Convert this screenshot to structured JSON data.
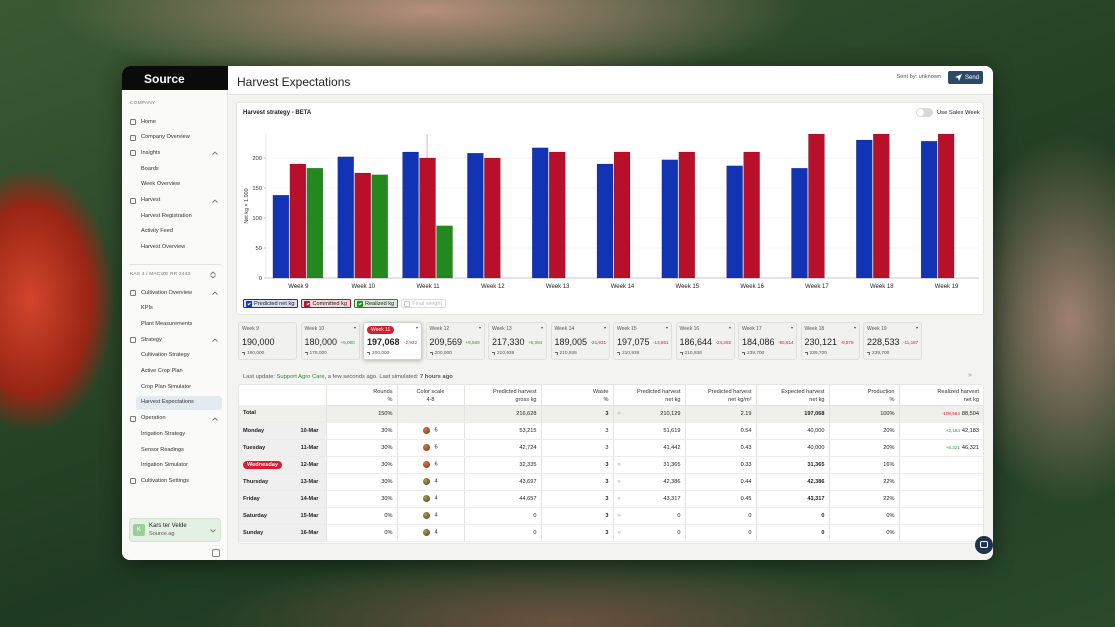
{
  "sidebar": {
    "logo": "Source",
    "groups": [
      {
        "header": "COMPANY",
        "items": [
          {
            "label": "Home"
          },
          {
            "label": "Company Overview"
          },
          {
            "label": "Insights",
            "children": [
              "Boards",
              "Week Overview"
            ]
          },
          {
            "label": "Harvest",
            "children": [
              "Harvest Registration",
              "Activity Feed",
              "Harvest Overview"
            ]
          }
        ]
      },
      {
        "header": "KAS 4 / MACIZE RR 2443",
        "items": [
          {
            "label": "Cultivation Overview",
            "children": [
              "KPIs",
              "Plant Measurements"
            ]
          },
          {
            "label": "Strategy",
            "children": [
              "Cultivation Strategy",
              "Active Crop Plan",
              "Crop Plan Simulator",
              "Harvest Expectations"
            ]
          },
          {
            "label": "Operation",
            "children": [
              "Irrigation Strategy",
              "Sensor Readings",
              "Irrigation Simulator"
            ]
          },
          {
            "label": "Cultivation Settings"
          }
        ]
      }
    ],
    "user": {
      "initial": "K",
      "name": "Kars ter Velde",
      "org": "Source.ag"
    }
  },
  "header": {
    "title": "Harvest Expectations",
    "sent_by": "Sent by: unknown",
    "send": "Send"
  },
  "panel": {
    "title": "Harvest strategy - BETA",
    "toggle": "Use Sales Week"
  },
  "chart_data": {
    "type": "bar",
    "y_label": "Net kg × 1.000",
    "categories": [
      "Week 9",
      "Week 10",
      "Week 11",
      "Week 12",
      "Week 13",
      "Week 14",
      "Week 15",
      "Week 16",
      "Week 17",
      "Week 18",
      "Week 19"
    ],
    "series": [
      {
        "name": "Predicted net kg",
        "color": "#1234b4",
        "values": [
          138,
          202,
          210,
          208,
          217,
          190,
          197,
          187,
          183,
          230,
          228
        ]
      },
      {
        "name": "Committed kg",
        "color": "#b8102a",
        "values": [
          190,
          175,
          200,
          200,
          210,
          210,
          210,
          210,
          240,
          240,
          240
        ]
      },
      {
        "name": "Realized kg",
        "color": "#23891f",
        "values": [
          183,
          172,
          87,
          null,
          null,
          null,
          null,
          null,
          null,
          null,
          null
        ]
      }
    ],
    "inactive_legend": "Final weight",
    "ylim": [
      0,
      240
    ],
    "yticks": [
      0,
      50,
      100,
      150,
      200
    ],
    "grid": true
  },
  "week_cards": [
    {
      "week": "Week 9",
      "value": "190,000",
      "committed": "190,000"
    },
    {
      "week": "Week 10",
      "value": "180,000",
      "delta": "+5,000",
      "committed": "175,000"
    },
    {
      "week": "Week 11",
      "value": "197,068",
      "delta": "-2,932",
      "committed": "200,000"
    },
    {
      "week": "Week 12",
      "value": "209,569",
      "delta": "+9,569",
      "committed": "200,000"
    },
    {
      "week": "Week 13",
      "value": "217,330",
      "delta": "+6,394",
      "committed": "210,936"
    },
    {
      "week": "Week 14",
      "value": "189,005",
      "delta": "-21,931",
      "committed": "210,936"
    },
    {
      "week": "Week 15",
      "value": "197,075",
      "delta": "-13,861",
      "committed": "210,936"
    },
    {
      "week": "Week 16",
      "value": "186,644",
      "delta": "-24,292",
      "committed": "210,936"
    },
    {
      "week": "Week 17",
      "value": "184,086",
      "delta": "-55,614",
      "committed": "239,700"
    },
    {
      "week": "Week 18",
      "value": "230,121",
      "delta": "-9,579",
      "committed": "239,700"
    },
    {
      "week": "Week 19",
      "value": "228,533",
      "delta": "-11,167",
      "committed": "239,700"
    }
  ],
  "update": {
    "prefix": "Last update:",
    "by": "Support Agro Care",
    "middle": ", a few seconds ago. Last simulated:",
    "simulated": "7 hours ago"
  },
  "table": {
    "columns": [
      {
        "title": "Rounds",
        "unit": "%"
      },
      {
        "title": "Color scale",
        "unit": "4-8"
      },
      {
        "title": "Predicted harvest",
        "unit": "gross kg"
      },
      {
        "title": "Waste",
        "unit": "%"
      },
      {
        "title": "Predicted harvest",
        "unit": "net kg"
      },
      {
        "title": "Predicted harvest",
        "unit": "net kg/m²"
      },
      {
        "title": "Expected harvest",
        "unit": "net kg"
      },
      {
        "title": "Production",
        "unit": "%"
      },
      {
        "title": "Realized harvest",
        "unit": "net kg"
      }
    ],
    "total": {
      "label": "Total",
      "cells": [
        "150%",
        null,
        "216,628",
        "3",
        "210,129",
        "2.19",
        "197,068",
        "100%",
        {
          "delta": "-108,564",
          "value": "88,504"
        }
      ]
    },
    "rows": [
      {
        "day": "Monday",
        "date": "10-Mar",
        "cells": [
          "30%",
          "6",
          "53,215",
          "3",
          "51,619",
          "0.54",
          "40,000",
          "20%",
          {
            "delta": "+2,183",
            "value": "42,183"
          }
        ]
      },
      {
        "day": "Tuesday",
        "date": "11-Mar",
        "cells": [
          "30%",
          "6",
          "42,724",
          "3",
          "41,442",
          "0.43",
          "40,000",
          "20%",
          {
            "delta": "+6,321",
            "value": "46,321"
          }
        ]
      },
      {
        "day": "Wednesday",
        "date": "12-Mar",
        "cells": [
          "30%",
          "6",
          "32,335",
          "3",
          "31,365",
          "0.33",
          "31,365",
          "16%"
        ]
      },
      {
        "day": "Thursday",
        "date": "13-Mar",
        "cells": [
          "30%",
          "4",
          "43,697",
          "3",
          "42,386",
          "0.44",
          "42,386",
          "22%"
        ]
      },
      {
        "day": "Friday",
        "date": "14-Mar",
        "cells": [
          "30%",
          "4",
          "44,657",
          "3",
          "43,317",
          "0.45",
          "43,317",
          "22%"
        ]
      },
      {
        "day": "Saturday",
        "date": "15-Mar",
        "cells": [
          "0%",
          "4",
          "0",
          "3",
          "0",
          "0",
          "0",
          "0%"
        ]
      },
      {
        "day": "Sunday",
        "date": "16-Mar",
        "cells": [
          "0%",
          "4",
          "0",
          "3",
          "0",
          "0",
          "0",
          "0%"
        ]
      }
    ]
  }
}
